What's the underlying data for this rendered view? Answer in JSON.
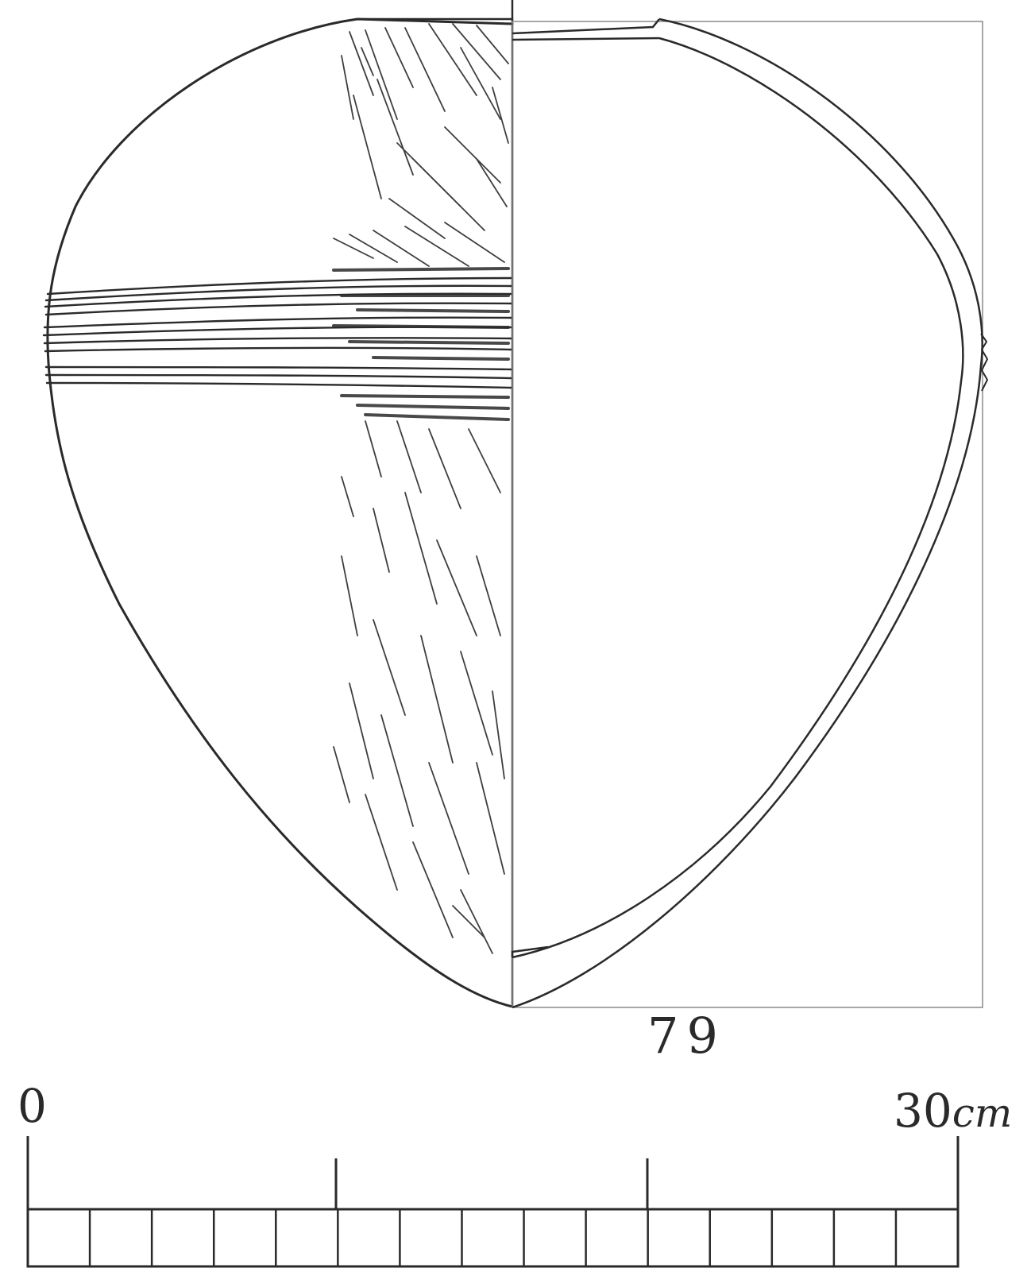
{
  "figure": {
    "number_label": "79"
  },
  "scale_bar": {
    "start_label": "0",
    "end_value": "30",
    "end_unit": "cm",
    "segments": 15
  },
  "colors": {
    "ink": "#2a2a2a",
    "frame": "#8a8a8a",
    "paper": "#ffffff"
  }
}
